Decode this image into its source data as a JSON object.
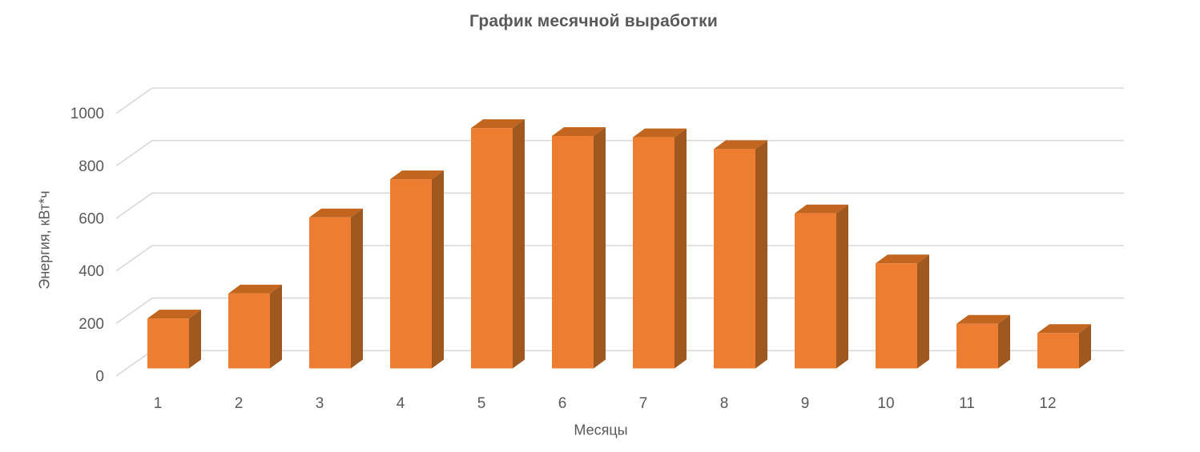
{
  "chart_data": {
    "type": "bar",
    "style": "3d-column",
    "title": "График месячной выработки",
    "xlabel": "Месяцы",
    "ylabel": "Энергия, кВт*ч",
    "categories": [
      "1",
      "2",
      "3",
      "4",
      "5",
      "6",
      "7",
      "8",
      "9",
      "10",
      "11",
      "12"
    ],
    "values": [
      190,
      285,
      575,
      720,
      915,
      885,
      880,
      835,
      590,
      400,
      170,
      135
    ],
    "yticks": [
      0,
      200,
      400,
      600,
      800,
      1000
    ],
    "ylim": [
      0,
      1000
    ],
    "grid": true,
    "legend_position": "none",
    "colors": {
      "bar_front": "#ED7D31",
      "bar_top": "#C2661F",
      "bar_side": "#9E5820",
      "gridline": "#D9D9D9",
      "text": "#595959",
      "background": "#FFFFFF"
    }
  }
}
